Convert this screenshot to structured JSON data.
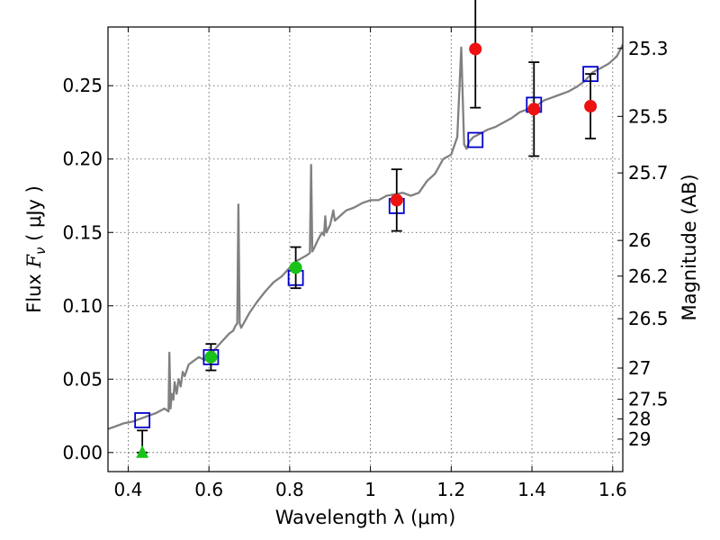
{
  "chart_data": {
    "type": "scatter",
    "title": "",
    "xlabel": "Wavelength  λ (μm)",
    "ylabel_left": {
      "prefix": "Flux  ",
      "symbol": "F",
      "subscript": "ν",
      "unit": "  ( μJy )"
    },
    "ylabel_right": "Magnitude (AB)",
    "xlim": [
      0.35,
      1.625
    ],
    "ylim": [
      -0.013,
      0.29
    ],
    "grid": true,
    "x_ticks": [
      {
        "value": 0.4,
        "label": "0.4"
      },
      {
        "value": 0.6,
        "label": "0.6"
      },
      {
        "value": 0.8,
        "label": "0.8"
      },
      {
        "value": 1.0,
        "label": "1"
      },
      {
        "value": 1.2,
        "label": "1.2"
      },
      {
        "value": 1.4,
        "label": "1.4"
      },
      {
        "value": 1.6,
        "label": "1.6"
      }
    ],
    "y_ticks": [
      {
        "value": 0.0,
        "label": "0.00"
      },
      {
        "value": 0.05,
        "label": "0.05"
      },
      {
        "value": 0.1,
        "label": "0.10"
      },
      {
        "value": 0.15,
        "label": "0.15"
      },
      {
        "value": 0.2,
        "label": "0.20"
      },
      {
        "value": 0.25,
        "label": "0.25"
      }
    ],
    "magnitude_ticks": [
      {
        "mag": 25.3,
        "label": "25.3"
      },
      {
        "mag": 25.5,
        "label": "25.5"
      },
      {
        "mag": 25.7,
        "label": "25.7"
      },
      {
        "mag": 26.0,
        "label": "26"
      },
      {
        "mag": 26.2,
        "label": "26.2"
      },
      {
        "mag": 26.5,
        "label": "26.5"
      },
      {
        "mag": 27.0,
        "label": "27"
      },
      {
        "mag": 27.5,
        "label": "27.5"
      },
      {
        "mag": 28.0,
        "label": "28"
      },
      {
        "mag": 29.0,
        "label": "29"
      }
    ],
    "colors": {
      "template": "#808080",
      "model_square": "#0000cc",
      "observed_green": "#19c219",
      "observed_red": "#ee1111",
      "error_bar": "#000000"
    },
    "series": [
      {
        "name": "SED template",
        "style": "line",
        "x": [
          0.35,
          0.37,
          0.39,
          0.41,
          0.43,
          0.45,
          0.47,
          0.49,
          0.5,
          0.502,
          0.505,
          0.508,
          0.512,
          0.515,
          0.52,
          0.525,
          0.53,
          0.535,
          0.54,
          0.55,
          0.56,
          0.575,
          0.59,
          0.605,
          0.62,
          0.63,
          0.64,
          0.65,
          0.66,
          0.665,
          0.67,
          0.673,
          0.676,
          0.68,
          0.69,
          0.7,
          0.72,
          0.74,
          0.76,
          0.78,
          0.8,
          0.82,
          0.84,
          0.85,
          0.853,
          0.856,
          0.86,
          0.87,
          0.88,
          0.885,
          0.888,
          0.891,
          0.9,
          0.905,
          0.908,
          0.912,
          0.92,
          0.94,
          0.96,
          0.98,
          1.0,
          1.02,
          1.04,
          1.06,
          1.08,
          1.1,
          1.12,
          1.14,
          1.16,
          1.18,
          1.2,
          1.215,
          1.225,
          1.232,
          1.238,
          1.245,
          1.255,
          1.27,
          1.29,
          1.31,
          1.33,
          1.35,
          1.37,
          1.39,
          1.41,
          1.43,
          1.45,
          1.47,
          1.49,
          1.51,
          1.53,
          1.55,
          1.57,
          1.59,
          1.61,
          1.625
        ],
        "y": [
          0.016,
          0.018,
          0.02,
          0.021,
          0.023,
          0.025,
          0.027,
          0.03,
          0.028,
          0.068,
          0.03,
          0.04,
          0.036,
          0.048,
          0.04,
          0.05,
          0.045,
          0.055,
          0.052,
          0.06,
          0.062,
          0.065,
          0.063,
          0.067,
          0.072,
          0.075,
          0.078,
          0.081,
          0.083,
          0.086,
          0.088,
          0.169,
          0.088,
          0.085,
          0.09,
          0.095,
          0.103,
          0.11,
          0.116,
          0.12,
          0.126,
          0.131,
          0.134,
          0.136,
          0.196,
          0.137,
          0.139,
          0.145,
          0.15,
          0.148,
          0.161,
          0.15,
          0.155,
          0.161,
          0.165,
          0.158,
          0.16,
          0.165,
          0.167,
          0.17,
          0.172,
          0.172,
          0.175,
          0.176,
          0.177,
          0.175,
          0.177,
          0.185,
          0.19,
          0.2,
          0.203,
          0.215,
          0.276,
          0.21,
          0.207,
          0.212,
          0.215,
          0.217,
          0.22,
          0.222,
          0.225,
          0.228,
          0.232,
          0.234,
          0.236,
          0.24,
          0.242,
          0.244,
          0.246,
          0.249,
          0.253,
          0.259,
          0.262,
          0.265,
          0.27,
          0.278
        ]
      },
      {
        "name": "Model photometry",
        "style": "open-square",
        "x": [
          0.435,
          0.605,
          0.815,
          1.065,
          1.26,
          1.405,
          1.545
        ],
        "y": [
          0.022,
          0.065,
          0.119,
          0.168,
          0.213,
          0.237,
          0.258
        ]
      },
      {
        "name": "Observed (optical)",
        "style": "filled-circle-green",
        "x": [
          0.605,
          0.815
        ],
        "y": [
          0.065,
          0.126
        ],
        "err": [
          0.009,
          0.014
        ]
      },
      {
        "name": "Observed (upper limit)",
        "style": "filled-triangle-green",
        "x": [
          0.435
        ],
        "y": [
          0.0
        ],
        "err_low": [
          0.0
        ],
        "err_high": [
          0.015
        ]
      },
      {
        "name": "Observed (NIR)",
        "style": "filled-circle-red",
        "x": [
          1.065,
          1.26,
          1.405,
          1.545
        ],
        "y": [
          0.172,
          0.275,
          0.234,
          0.236
        ],
        "err_low": [
          0.021,
          0.04,
          0.032,
          0.022
        ],
        "err_high": [
          0.021,
          0.04,
          0.032,
          0.022
        ]
      }
    ]
  }
}
